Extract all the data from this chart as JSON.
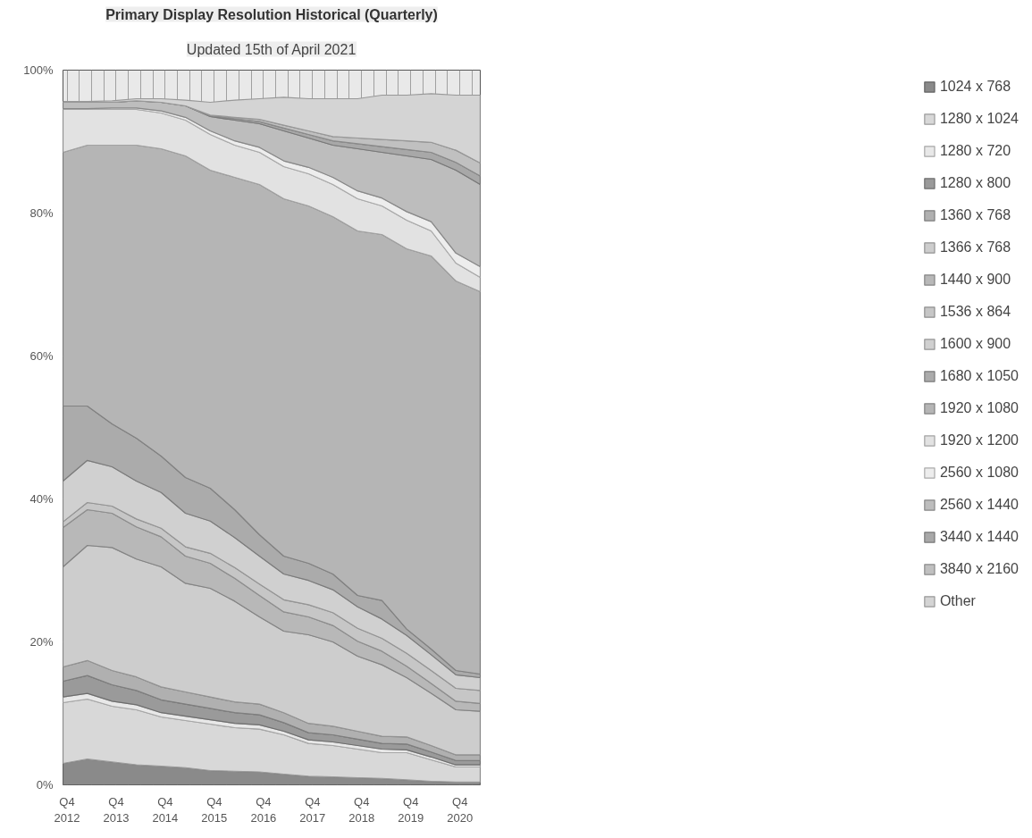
{
  "chart_data": {
    "type": "area",
    "title": "Primary Display Resolution Historical (Quarterly)",
    "subtitle": "Updated 15th of April 2021",
    "stacked": true,
    "legend": "right",
    "grid": true,
    "x": [
      "2012-09",
      "2013-03",
      "2013-09",
      "2014-03",
      "2014-09",
      "2015-03",
      "2015-09",
      "2016-03",
      "2016-09",
      "2017-03",
      "2017-09",
      "2018-03",
      "2018-09",
      "2019-03",
      "2019-09",
      "2020-03",
      "2020-09",
      "2021-03"
    ],
    "xlim": [
      "2012-09",
      "2021-03"
    ],
    "xticks": [
      {
        "value": "2012-10",
        "label": "Q4 2012"
      },
      {
        "value": "2013-01",
        "label": null
      },
      {
        "value": "2013-04",
        "label": null
      },
      {
        "value": "2013-07",
        "label": null
      },
      {
        "value": "2013-10",
        "label": "Q4 2013"
      },
      {
        "value": "2014-01",
        "label": null
      },
      {
        "value": "2014-04",
        "label": null
      },
      {
        "value": "2014-07",
        "label": null
      },
      {
        "value": "2014-10",
        "label": "Q4 2014"
      },
      {
        "value": "2015-01",
        "label": null
      },
      {
        "value": "2015-04",
        "label": null
      },
      {
        "value": "2015-07",
        "label": null
      },
      {
        "value": "2015-10",
        "label": "Q4 2015"
      },
      {
        "value": "2016-01",
        "label": null
      },
      {
        "value": "2016-04",
        "label": null
      },
      {
        "value": "2016-07",
        "label": null
      },
      {
        "value": "2016-10",
        "label": "Q4 2016"
      },
      {
        "value": "2017-01",
        "label": null
      },
      {
        "value": "2017-04",
        "label": null
      },
      {
        "value": "2017-07",
        "label": null
      },
      {
        "value": "2017-10",
        "label": "Q4 2017"
      },
      {
        "value": "2018-01",
        "label": null
      },
      {
        "value": "2018-04",
        "label": null
      },
      {
        "value": "2018-07",
        "label": null
      },
      {
        "value": "2018-10",
        "label": "Q4 2018"
      },
      {
        "value": "2019-01",
        "label": null
      },
      {
        "value": "2019-04",
        "label": null
      },
      {
        "value": "2019-07",
        "label": null
      },
      {
        "value": "2019-10",
        "label": "Q4 2019"
      },
      {
        "value": "2020-01",
        "label": null
      },
      {
        "value": "2020-04",
        "label": null
      },
      {
        "value": "2020-07",
        "label": null
      },
      {
        "value": "2020-10",
        "label": "Q4 2020"
      },
      {
        "value": "2021-01",
        "label": null
      }
    ],
    "ylim": [
      0,
      100
    ],
    "yticks": [
      {
        "value": 0,
        "label": "0%"
      },
      {
        "value": 20,
        "label": "20%"
      },
      {
        "value": 40,
        "label": "40%"
      },
      {
        "value": 60,
        "label": "60%"
      },
      {
        "value": 80,
        "label": "80%"
      },
      {
        "value": 100,
        "label": "100%"
      }
    ],
    "series": [
      {
        "name": "1024 x 768",
        "color": "#8a8a8a",
        "values": [
          3.0,
          3.6,
          3.2,
          2.8,
          2.6,
          2.4,
          2.0,
          1.9,
          1.8,
          1.5,
          1.2,
          1.1,
          1.0,
          0.9,
          0.7,
          0.5,
          0.4,
          0.4
        ]
      },
      {
        "name": "1280 x 1024",
        "color": "#d8d8d8",
        "values": [
          8.5,
          8.4,
          7.8,
          7.7,
          6.9,
          6.6,
          6.5,
          6.1,
          6.0,
          5.5,
          4.6,
          4.4,
          4.0,
          3.6,
          3.8,
          3.0,
          2.1,
          2.1
        ]
      },
      {
        "name": "1280 x 720",
        "color": "#e8e8e8",
        "values": [
          0.8,
          0.8,
          0.7,
          0.7,
          0.6,
          0.6,
          0.6,
          0.6,
          0.6,
          0.5,
          0.5,
          0.5,
          0.5,
          0.5,
          0.4,
          0.4,
          0.3,
          0.3
        ]
      },
      {
        "name": "1280 x 800",
        "color": "#9a9a9a",
        "values": [
          2.2,
          2.5,
          2.3,
          2.0,
          1.8,
          1.7,
          1.6,
          1.5,
          1.4,
          1.2,
          1.0,
          1.0,
          0.9,
          0.8,
          0.8,
          0.7,
          0.6,
          0.6
        ]
      },
      {
        "name": "1360 x 768",
        "color": "#b0b0b0",
        "values": [
          2.0,
          2.1,
          2.0,
          1.9,
          1.8,
          1.7,
          1.6,
          1.5,
          1.5,
          1.4,
          1.3,
          1.2,
          1.1,
          1.0,
          1.0,
          0.9,
          0.8,
          0.8
        ]
      },
      {
        "name": "1366 x 768",
        "color": "#cdcdcd",
        "values": [
          14.0,
          16.1,
          17.2,
          16.5,
          16.8,
          15.2,
          15.2,
          14.1,
          12.2,
          11.4,
          12.4,
          11.8,
          10.5,
          10.0,
          8.3,
          7.3,
          6.3,
          6.1
        ]
      },
      {
        "name": "1440 x 900",
        "color": "#b8b8b8",
        "values": [
          5.5,
          5.0,
          4.8,
          4.5,
          4.2,
          3.8,
          3.5,
          3.2,
          3.0,
          2.7,
          2.5,
          2.3,
          2.1,
          1.9,
          1.6,
          1.4,
          1.2,
          1.1
        ]
      },
      {
        "name": "1536 x 864",
        "color": "#c6c6c6",
        "values": [
          0.8,
          1.0,
          1.0,
          1.1,
          1.2,
          1.3,
          1.4,
          1.5,
          1.6,
          1.7,
          1.7,
          1.8,
          1.8,
          1.8,
          1.8,
          1.8,
          1.8,
          1.8
        ]
      },
      {
        "name": "1600 x 900",
        "color": "#d0d0d0",
        "values": [
          5.7,
          5.9,
          5.5,
          5.3,
          5.0,
          4.7,
          4.5,
          4.2,
          3.9,
          3.6,
          3.4,
          3.2,
          3.0,
          2.7,
          2.5,
          2.2,
          1.9,
          1.8
        ]
      },
      {
        "name": "1680 x 1050",
        "color": "#ababab",
        "values": [
          10.5,
          7.6,
          6.0,
          6.0,
          5.1,
          5.0,
          4.6,
          3.9,
          3.0,
          2.5,
          2.4,
          2.2,
          1.6,
          2.6,
          0.9,
          0.8,
          0.6,
          0.5
        ]
      },
      {
        "name": "1920 x 1080",
        "color": "#b5b5b5",
        "values": [
          35.5,
          36.5,
          39.0,
          41.0,
          43.0,
          45.0,
          44.5,
          46.5,
          49.0,
          50.0,
          50.0,
          50.0,
          51.0,
          51.2,
          53.2,
          55.0,
          54.5,
          53.5
        ]
      },
      {
        "name": "1920 x 1200",
        "color": "#e2e2e2",
        "values": [
          6.0,
          5.0,
          5.0,
          5.0,
          5.0,
          5.0,
          5.0,
          4.5,
          4.5,
          4.5,
          4.5,
          4.5,
          4.5,
          4.0,
          4.0,
          3.5,
          2.5,
          2.0
        ]
      },
      {
        "name": "2560 x 1080",
        "color": "#ededed",
        "values": [
          0.1,
          0.1,
          0.2,
          0.2,
          0.3,
          0.4,
          0.5,
          0.6,
          0.7,
          0.8,
          0.9,
          1.0,
          1.1,
          1.1,
          1.2,
          1.3,
          1.4,
          1.5
        ]
      },
      {
        "name": "2560 x 1440",
        "color": "#bdbdbd",
        "values": [
          0.9,
          0.9,
          0.8,
          1.0,
          1.2,
          1.6,
          2.0,
          2.9,
          3.3,
          4.2,
          4.1,
          4.5,
          5.9,
          6.4,
          7.8,
          8.7,
          11.6,
          11.5
        ]
      },
      {
        "name": "3440 x 1440",
        "color": "#a8a8a8",
        "values": [
          0,
          0,
          0,
          0,
          0,
          0,
          0.1,
          0.2,
          0.3,
          0.4,
          0.5,
          0.6,
          0.7,
          0.8,
          0.9,
          1.0,
          1.1,
          1.2
        ]
      },
      {
        "name": "3840 x 2160",
        "color": "#c0c0c0",
        "values": [
          0,
          0,
          0,
          0,
          0,
          0,
          0.1,
          0.2,
          0.3,
          0.4,
          0.5,
          0.6,
          0.8,
          1.0,
          1.2,
          1.4,
          1.7,
          1.8
        ]
      },
      {
        "name": "Other",
        "color": "#d4d4d4",
        "values": [
          0.1,
          0.1,
          0.2,
          0.3,
          0.5,
          0.8,
          1.8,
          2.4,
          2.9,
          3.9,
          4.5,
          5.3,
          5.5,
          6.2,
          6.4,
          6.8,
          7.7,
          9.5
        ]
      }
    ]
  }
}
